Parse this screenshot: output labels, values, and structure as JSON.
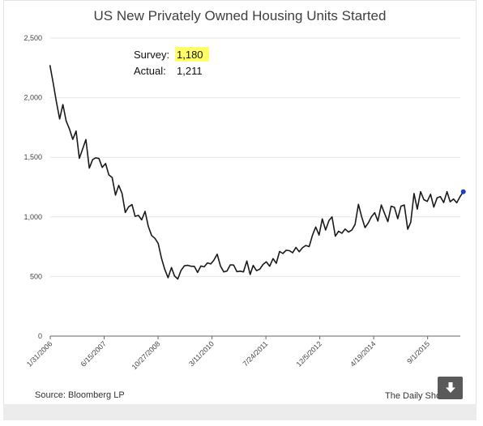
{
  "page": {
    "source": "Source: Bloomberg LP",
    "credit": "The Daily Shot",
    "download_icon": "download-arrow-icon"
  },
  "colors": {
    "line": "#1a1a1a",
    "grid": "#e6e6e6",
    "highlight": "#ffff66",
    "marker": "#1f3fbf",
    "axis": "#666666"
  },
  "chart_data": {
    "type": "line",
    "title": "US New Privately Owned Housing Units Started",
    "xlabel": "",
    "ylabel": "",
    "ylim": [
      0,
      2500
    ],
    "yticks": [
      0,
      500,
      1000,
      1500,
      2000,
      2500
    ],
    "ytick_labels": [
      "0",
      "500",
      "1,000",
      "1,500",
      "2,000",
      "2,500"
    ],
    "x_start": "2006-01-31",
    "x_end": "2016-06-30",
    "x_ticks": [
      "1/31/2006",
      "6/15/2007",
      "10/27/2008",
      "3/11/2010",
      "7/24/2011",
      "12/5/2012",
      "4/19/2014",
      "9/1/2015"
    ],
    "grid": true,
    "legend": "none",
    "annotation": {
      "survey_label": "Survey:",
      "survey_value": "1,180",
      "actual_label": "Actual:",
      "actual_value": "1,211"
    },
    "series": [
      {
        "values": [
          2273,
          2120,
          1969,
          1821,
          1942,
          1803,
          1737,
          1650,
          1720,
          1491,
          1570,
          1649,
          1409,
          1480,
          1495,
          1490,
          1415,
          1448,
          1354,
          1330,
          1183,
          1264,
          1197,
          1037,
          1084,
          1103,
          1005,
          1013,
          975,
          1046,
          923,
          844,
          820,
          777,
          652,
          560,
          490,
          575,
          505,
          479,
          551,
          590,
          594,
          586,
          585,
          534,
          588,
          581,
          614,
          605,
          636,
          687,
          588,
          539,
          546,
          598,
          596,
          541,
          545,
          539,
          630,
          517,
          593,
          549,
          561,
          601,
          623,
          586,
          650,
          611,
          710,
          693,
          720,
          717,
          699,
          744,
          708,
          741,
          760,
          751,
          847,
          915,
          848,
          983,
          890,
          969,
          1000,
          838,
          880,
          863,
          898,
          873,
          889,
          936,
          1105,
          1000,
          910,
          950,
          1000,
          1035,
          965,
          1100,
          1030,
          960,
          1090,
          1080,
          985,
          1090,
          1100,
          897,
          954,
          1196,
          1065,
          1211,
          1145,
          1130,
          1190,
          1082,
          1160,
          1170,
          1120,
          1211,
          1127,
          1150,
          1118,
          1170,
          1211
        ]
      }
    ]
  }
}
